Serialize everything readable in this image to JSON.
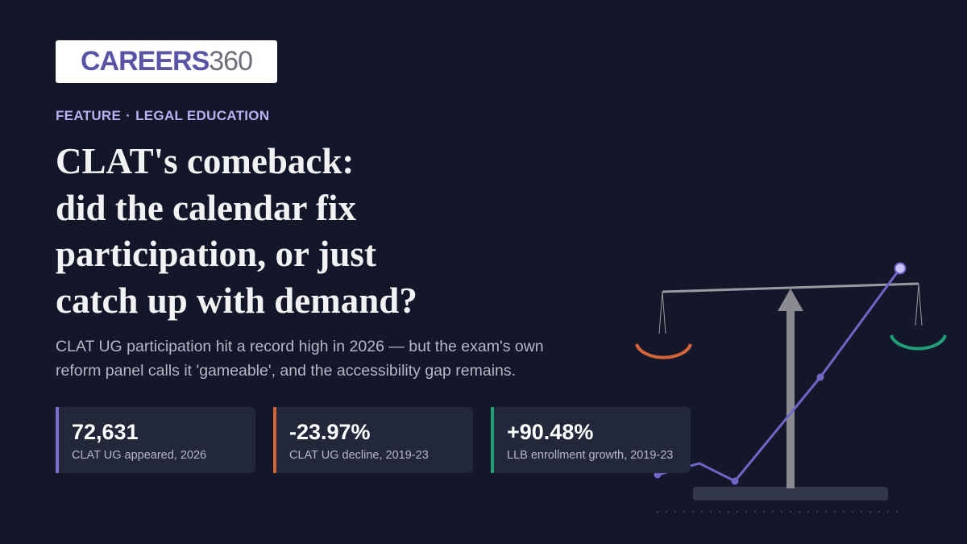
{
  "logo": {
    "primary": "CAREERS",
    "secondary": "360"
  },
  "kicker": {
    "section": "FEATURE",
    "separator": "·",
    "topic": "LEGAL EDUCATION"
  },
  "title_lines": [
    "CLAT's comeback:",
    "did the calendar fix",
    "participation, or just",
    "catch up with demand?"
  ],
  "subtitle_lines": [
    "CLAT UG participation hit a record high in 2026 — but the exam's own",
    "reform panel calls it 'gameable', and the accessibility gap remains."
  ],
  "stats": [
    {
      "value": "72,631",
      "label": "CLAT UG appeared, 2026"
    },
    {
      "value": "-23.97%",
      "label": "CLAT UG decline, 2019-23"
    },
    {
      "value": "+90.48%",
      "label": "LLB enrollment growth, 2019-23"
    }
  ]
}
